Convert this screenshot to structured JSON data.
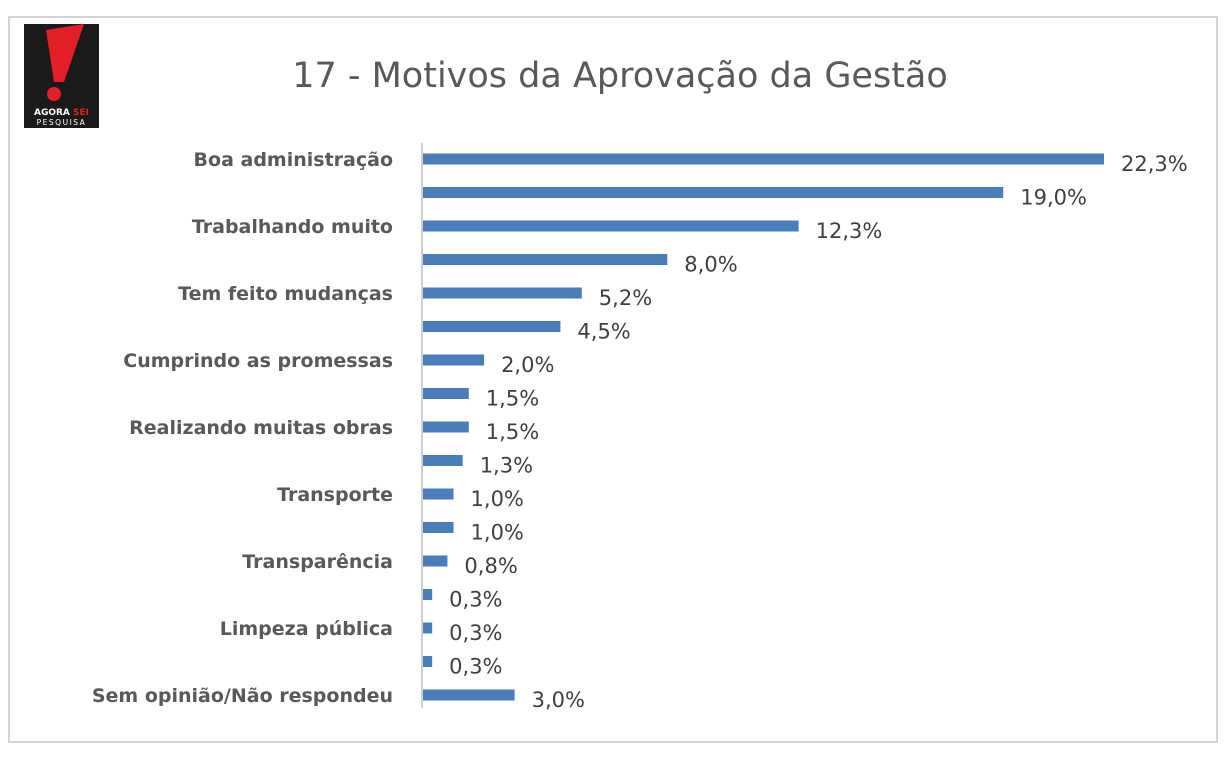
{
  "colors": {
    "bar": "#4a7ebb",
    "axis": "#bfbfbf",
    "title": "#595959",
    "logo_bg": "#1a1a1a",
    "logo_accent": "#e21f26"
  },
  "logo": {
    "line1_main": "AGORA ",
    "line1_accent": "SEI",
    "line2": "PESQUISA",
    "icon": "exclamation-mark-icon"
  },
  "chart_data": {
    "type": "bar",
    "orientation": "horizontal",
    "title": "17 - Motivos da Aprovação da Gestão",
    "categories": [
      "Boa administração",
      "",
      "Trabalhando muito",
      "",
      "Tem feito mudanças",
      "",
      "Cumprindo as promessas",
      "",
      "Realizando muitas obras",
      "",
      "Transporte",
      "",
      "Transparência",
      "",
      "Limpeza pública",
      "",
      "Sem opinião/Não respondeu"
    ],
    "values": [
      22.3,
      19.0,
      12.3,
      8.0,
      5.2,
      4.5,
      2.0,
      1.5,
      1.5,
      1.3,
      1.0,
      1.0,
      0.8,
      0.3,
      0.3,
      0.3,
      3.0
    ],
    "value_labels": [
      "22,3%",
      "19,0%",
      "12,3%",
      "8,0%",
      "5,2%",
      "4,5%",
      "2,0%",
      "1,5%",
      "1,5%",
      "1,3%",
      "1,0%",
      "1,0%",
      "0,8%",
      "0,3%",
      "0,3%",
      "0,3%",
      "3,0%"
    ],
    "xlim": [
      0,
      22.3
    ],
    "grid": false,
    "legend": "none"
  }
}
